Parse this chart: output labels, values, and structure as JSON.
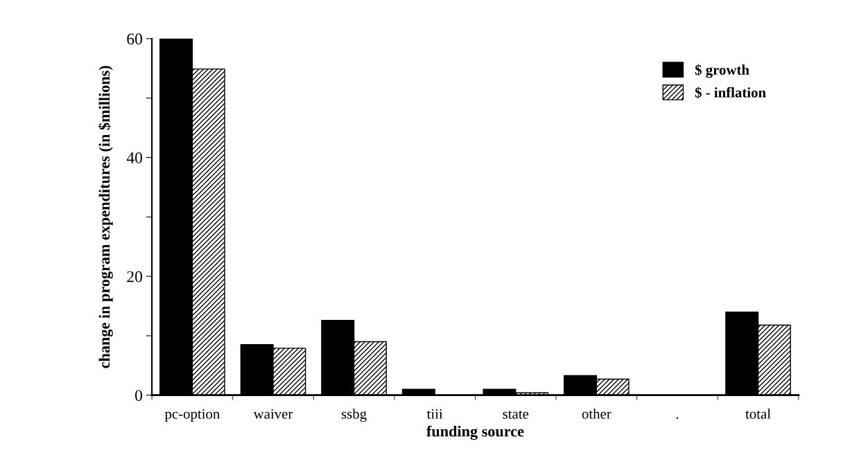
{
  "chart_data": {
    "type": "bar",
    "xlabel": "funding source",
    "ylabel": "change in program expenditures (in $millions)",
    "categories": [
      "pc-option",
      "waiver",
      "ssbg",
      "tiii",
      "state",
      "other",
      ".",
      "total"
    ],
    "series": [
      {
        "name": "$ growth",
        "color": "#000000",
        "values": [
          60,
          8.5,
          12.6,
          1.0,
          1.0,
          3.3,
          0,
          14.0
        ]
      },
      {
        "name": "$ - inflation",
        "color": "#000000",
        "values": [
          54.9,
          7.9,
          9.0,
          0,
          0.4,
          2.7,
          0,
          11.8
        ]
      }
    ],
    "ylim": [
      0,
      60
    ],
    "yticks": [
      0,
      {
        "value": 10,
        "label": null
      },
      20,
      {
        "value": 30,
        "label": null
      },
      40,
      {
        "value": 50,
        "label": null
      },
      60
    ],
    "grid": false,
    "legend": "top right"
  }
}
